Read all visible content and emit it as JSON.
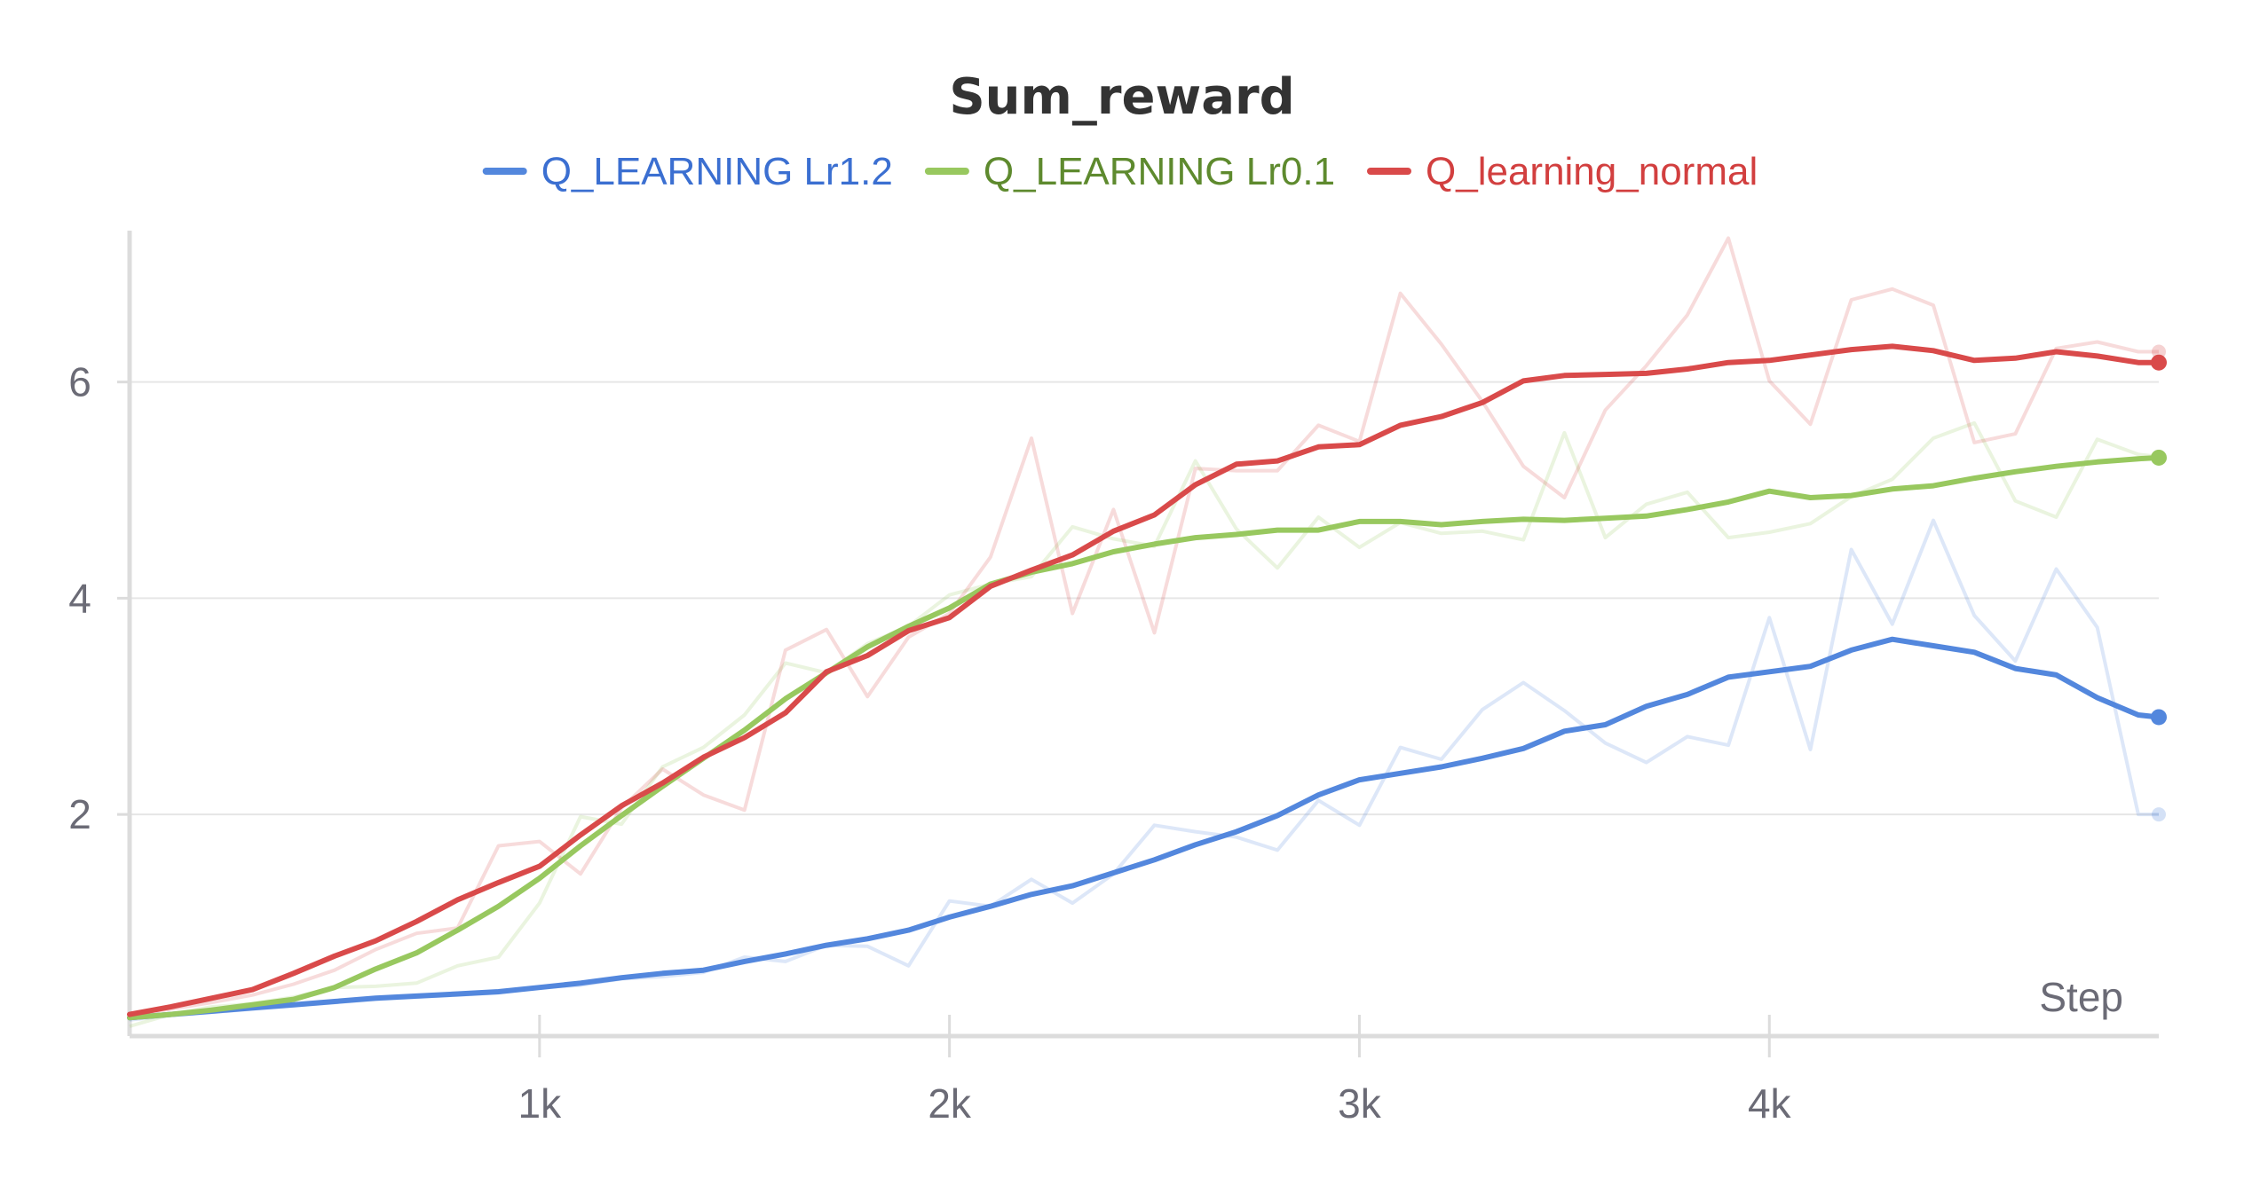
{
  "chart_data": {
    "type": "line",
    "title": "Sum_reward",
    "xlabel": "Step",
    "ylabel": "",
    "xlim": [
      0,
      4950
    ],
    "ylim": [
      -0.05,
      7.4
    ],
    "x_ticks": [
      {
        "value": 1000,
        "label": "1k"
      },
      {
        "value": 2000,
        "label": "2k"
      },
      {
        "value": 3000,
        "label": "3k"
      },
      {
        "value": 4000,
        "label": "4k"
      }
    ],
    "y_ticks": [
      {
        "value": 2,
        "label": "2"
      },
      {
        "value": 4,
        "label": "4"
      },
      {
        "value": 6,
        "label": "6"
      }
    ],
    "grid": true,
    "legend_position": "top-center",
    "x": [
      0,
      100,
      200,
      300,
      400,
      500,
      600,
      700,
      800,
      900,
      1000,
      1100,
      1200,
      1300,
      1400,
      1500,
      1600,
      1700,
      1800,
      1900,
      2000,
      2100,
      2200,
      2300,
      2400,
      2500,
      2600,
      2700,
      2800,
      2900,
      3000,
      3100,
      3200,
      3300,
      3400,
      3500,
      3600,
      3700,
      3800,
      3900,
      4000,
      4100,
      4200,
      4300,
      4400,
      4500,
      4600,
      4700,
      4800,
      4900,
      4950
    ],
    "series": [
      {
        "name": "Q_LEARNING Lr1.2",
        "color": "#5387dd",
        "legend_text_color": "#3b6fd1",
        "smoothed": [
          0.12,
          0.15,
          0.18,
          0.21,
          0.24,
          0.27,
          0.3,
          0.32,
          0.34,
          0.36,
          0.4,
          0.44,
          0.49,
          0.53,
          0.56,
          0.64,
          0.71,
          0.79,
          0.85,
          0.93,
          1.05,
          1.15,
          1.26,
          1.34,
          1.46,
          1.58,
          1.72,
          1.84,
          1.99,
          2.18,
          2.32,
          2.38,
          2.44,
          2.52,
          2.61,
          2.77,
          2.83,
          3.0,
          3.11,
          3.27,
          3.32,
          3.37,
          3.52,
          3.62,
          3.56,
          3.5,
          3.35,
          3.29,
          3.08,
          2.92,
          2.9
        ],
        "raw": [
          0.1,
          0.14,
          0.17,
          0.2,
          0.23,
          0.26,
          0.29,
          0.31,
          0.33,
          0.35,
          0.4,
          0.42,
          0.48,
          0.5,
          0.54,
          0.68,
          0.64,
          0.79,
          0.78,
          0.6,
          1.2,
          1.15,
          1.4,
          1.18,
          1.45,
          1.9,
          1.84,
          1.79,
          1.67,
          2.13,
          1.9,
          2.62,
          2.51,
          2.97,
          3.22,
          2.96,
          2.66,
          2.48,
          2.72,
          2.64,
          3.82,
          2.6,
          4.45,
          3.76,
          4.72,
          3.84,
          3.42,
          4.27,
          3.73,
          2.0,
          2.0
        ]
      },
      {
        "name": "Q_LEARNING Lr0.1",
        "color": "#98c85f",
        "legend_text_color": "#5e8a2e",
        "smoothed": [
          0.12,
          0.15,
          0.19,
          0.24,
          0.29,
          0.4,
          0.57,
          0.72,
          0.93,
          1.15,
          1.41,
          1.71,
          1.99,
          2.26,
          2.52,
          2.78,
          3.07,
          3.31,
          3.55,
          3.74,
          3.91,
          4.13,
          4.24,
          4.32,
          4.43,
          4.5,
          4.56,
          4.59,
          4.63,
          4.63,
          4.71,
          4.71,
          4.68,
          4.71,
          4.73,
          4.72,
          4.74,
          4.76,
          4.82,
          4.89,
          4.99,
          4.93,
          4.95,
          5.01,
          5.04,
          5.11,
          5.17,
          5.22,
          5.26,
          5.29,
          5.3
        ],
        "raw": [
          0.04,
          0.15,
          0.22,
          0.25,
          0.31,
          0.4,
          0.41,
          0.44,
          0.6,
          0.68,
          1.18,
          1.98,
          1.91,
          2.44,
          2.62,
          2.92,
          3.4,
          3.31,
          3.58,
          3.74,
          4.03,
          4.13,
          4.2,
          4.66,
          4.55,
          4.48,
          5.27,
          4.64,
          4.28,
          4.75,
          4.47,
          4.7,
          4.6,
          4.62,
          4.54,
          5.53,
          4.56,
          4.87,
          4.98,
          4.56,
          4.61,
          4.69,
          4.94,
          5.1,
          5.48,
          5.62,
          4.9,
          4.75,
          5.47,
          5.33,
          5.31
        ]
      },
      {
        "name": "Q_learning_normal",
        "color": "#d94a4a",
        "legend_text_color": "#d23f3f",
        "smoothed": [
          0.15,
          0.22,
          0.3,
          0.38,
          0.53,
          0.69,
          0.83,
          1.01,
          1.21,
          1.37,
          1.52,
          1.81,
          2.08,
          2.29,
          2.53,
          2.71,
          2.94,
          3.32,
          3.47,
          3.7,
          3.82,
          4.11,
          4.26,
          4.4,
          4.62,
          4.77,
          5.05,
          5.24,
          5.27,
          5.4,
          5.42,
          5.6,
          5.68,
          5.81,
          6.01,
          6.06,
          6.07,
          6.08,
          6.12,
          6.18,
          6.2,
          6.25,
          6.3,
          6.33,
          6.29,
          6.2,
          6.22,
          6.28,
          6.24,
          6.18,
          6.18
        ],
        "raw": [
          0.15,
          0.2,
          0.26,
          0.33,
          0.43,
          0.56,
          0.75,
          0.9,
          0.95,
          1.71,
          1.75,
          1.45,
          2.06,
          2.42,
          2.18,
          2.04,
          3.52,
          3.71,
          3.09,
          3.64,
          3.86,
          4.38,
          5.48,
          3.86,
          4.82,
          3.68,
          5.2,
          5.18,
          5.18,
          5.6,
          5.45,
          6.82,
          6.35,
          5.82,
          5.22,
          4.93,
          5.74,
          6.15,
          6.62,
          7.33,
          6.01,
          5.61,
          6.76,
          6.86,
          6.71,
          5.44,
          5.52,
          6.31,
          6.37,
          6.28,
          6.28
        ]
      }
    ]
  }
}
